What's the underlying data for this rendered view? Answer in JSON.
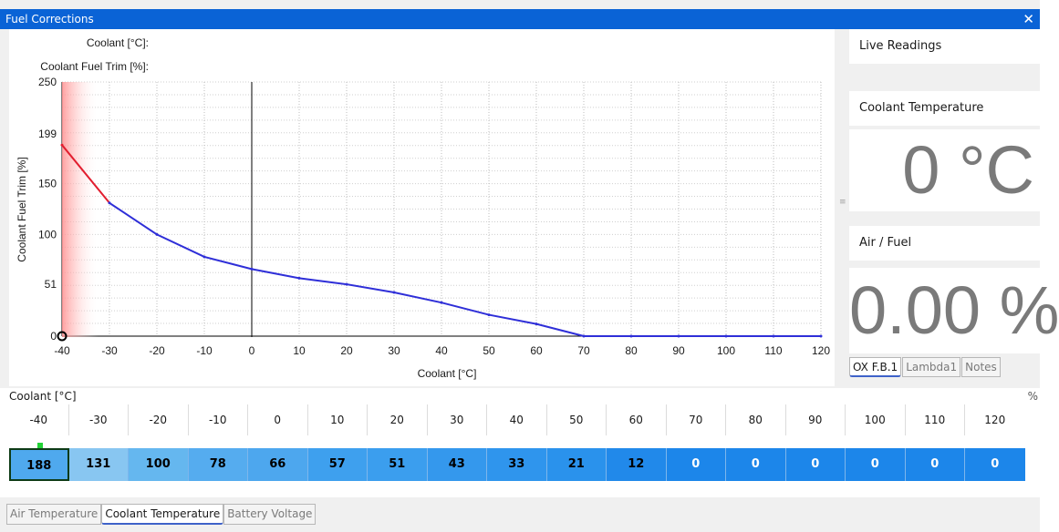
{
  "window": {
    "title": "Fuel Corrections",
    "close_glyph": "✕"
  },
  "chart": {
    "hover_x_label": "Coolant [°C]:",
    "hover_y_label": "Coolant Fuel Trim [%]:",
    "zero_tick": "0",
    "ylabel": "Coolant Fuel Trim [%]",
    "xlabel": "Coolant [°C]"
  },
  "chart_data": {
    "type": "line",
    "title": "",
    "xlabel": "Coolant [°C]",
    "ylabel": "Coolant Fuel Trim [%]",
    "x": [
      -40,
      -30,
      -20,
      -10,
      0,
      10,
      20,
      30,
      40,
      50,
      60,
      70,
      80,
      90,
      100,
      110,
      120
    ],
    "y": [
      188,
      131,
      100,
      78,
      66,
      57,
      51,
      43,
      33,
      21,
      12,
      0,
      0,
      0,
      0,
      0,
      0
    ],
    "xlim": [
      -40,
      120
    ],
    "ylim": [
      0,
      250
    ],
    "x_ticks": [
      -40,
      -30,
      -20,
      -10,
      0,
      10,
      20,
      30,
      40,
      50,
      60,
      70,
      80,
      90,
      100,
      110,
      120
    ],
    "y_ticks": [
      0,
      51,
      100,
      150,
      199,
      250
    ],
    "grid": true,
    "line_color": "#2f2fd8",
    "highlight_color": "#e21e2f"
  },
  "live": {
    "title": "Live Readings",
    "coolant_label": "Coolant Temperature",
    "coolant_value": "0 °C",
    "afr_label": "Air / Fuel",
    "afr_value": "0.00 %",
    "tabs": [
      "OX F.B.1",
      "Lambda1",
      "Notes"
    ]
  },
  "table": {
    "axis_label": "Coolant [°C]",
    "unit": "%",
    "headers": [
      "-40",
      "-30",
      "-20",
      "-10",
      "0",
      "10",
      "20",
      "30",
      "40",
      "50",
      "60",
      "70",
      "80",
      "90",
      "100",
      "110",
      "120"
    ],
    "values": [
      "188",
      "131",
      "100",
      "78",
      "66",
      "57",
      "51",
      "43",
      "33",
      "21",
      "12",
      "0",
      "0",
      "0",
      "0",
      "0",
      "0"
    ],
    "cell_colors": [
      "#4fa9ee",
      "#88c6f1",
      "#65b7ef",
      "#55acef",
      "#4da7ee",
      "#3ea0ee",
      "#3b9eee",
      "#3498ed",
      "#2f95ed",
      "#2a92ec",
      "#2189ea",
      "#1c86ea",
      "#1c86ea",
      "#1c86ea",
      "#1c86ea",
      "#1c86ea",
      "#1c86ea"
    ],
    "cell_text_colors": [
      "#000000",
      "#000000",
      "#000000",
      "#000000",
      "#000000",
      "#000000",
      "#000000",
      "#000000",
      "#000000",
      "#000000",
      "#000000",
      "#ffffff",
      "#ffffff",
      "#ffffff",
      "#ffffff",
      "#ffffff",
      "#ffffff"
    ]
  },
  "bottom_tabs": [
    "Air Temperature",
    "Coolant Temperature",
    "Battery Voltage"
  ]
}
